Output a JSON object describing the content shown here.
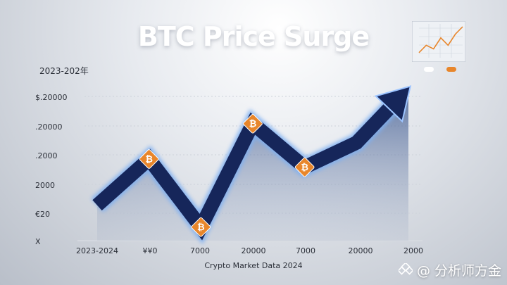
{
  "title": "BTC Price Surge",
  "y_caption": "2023-202年",
  "y_ticks": [
    "$.20000",
    ".20000",
    ".2000",
    "2000",
    "€20",
    "X"
  ],
  "x_ticks": [
    "2023-2024",
    "¥¥0",
    "7000",
    "20000",
    "7000",
    "20000",
    "2000"
  ],
  "caption": "Crypto Market Data 2024",
  "watermark": "@ 分析师方金",
  "colors": {
    "line": "#16265a",
    "glow": "#6f9fe6",
    "marker": "#e8862b",
    "fill": "#2c4a86"
  },
  "chart_data": {
    "type": "line",
    "title": "BTC Price Surge",
    "categories": [
      "2023-2024",
      "¥¥0",
      "7000",
      "20000",
      "7000",
      "20000",
      "2000"
    ],
    "x": [
      0,
      1,
      2,
      3,
      4,
      5,
      6
    ],
    "values": [
      2.6,
      6.0,
      1.0,
      8.6,
      5.4,
      7.2,
      11.2
    ],
    "markers_at": [
      1,
      2,
      3,
      4
    ],
    "marker_icon": "bitcoin-icon",
    "ylim": [
      0,
      12
    ],
    "grid": true,
    "legend": "top-right",
    "inset": {
      "type": "line",
      "values": [
        1,
        3,
        2,
        5,
        3,
        6,
        8
      ]
    }
  }
}
